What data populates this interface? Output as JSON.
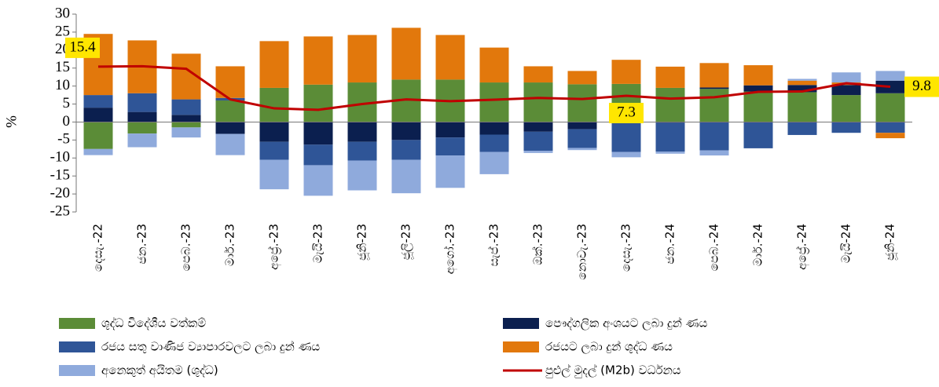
{
  "chart_data": {
    "type": "bar",
    "y_label": "%",
    "categories": [
      "දෙසැ.-22",
      "ජන.-23",
      "පෙබ.-23",
      "මාර්.-23",
      "අප්‍රේ.-23",
      "මැයි-23",
      "ජූනි-23",
      "ජූලි-23",
      "අගෝ.-23",
      "සැප්.-23",
      "ඔක්.-23",
      "නොවැ.-23",
      "දෙසැ.-23",
      "ජන.-24",
      "පෙබ.-24",
      "මාර්.-24",
      "අප්‍රේ.-24",
      "මැයි-24",
      "ජූනි-24"
    ],
    "series": [
      {
        "name": "ශුද්ධ විදේශීය වත්කම්",
        "color": "#5b8c37",
        "values": [
          -7.5,
          -3.2,
          -1.5,
          6,
          9.5,
          10.4,
          11,
          11.8,
          11.8,
          11,
          11,
          10.5,
          10.6,
          9.5,
          9.2,
          8.5,
          8.3,
          7.5,
          8
        ]
      },
      {
        "name": "පෞද්ගලික අංශයට ලබා දුන් ණය",
        "color": "#0b1f4f",
        "values": [
          4,
          2.8,
          2,
          -3.3,
          -5.5,
          -6.3,
          -5.5,
          -5,
          -4.3,
          -3.5,
          -2.7,
          -2,
          -0.3,
          -0.2,
          0.4,
          1.7,
          2,
          2.8,
          3.5
        ]
      },
      {
        "name": "රජය සතු වාණිජ ව්‍යාපාරවලට ලබා දුන් ණය",
        "color": "#2f5597",
        "values": [
          3.5,
          5.2,
          4.3,
          0.7,
          -5,
          -5.7,
          -5.2,
          -5.5,
          -5,
          -4.8,
          -5.3,
          -5.2,
          -8,
          -8,
          -7.9,
          -7.3,
          -3.6,
          -3,
          -3
        ]
      },
      {
        "name": "රජයට ලබා දුන් ශුද්ධ ණය",
        "color": "#e2780c",
        "values": [
          17,
          14.7,
          12.7,
          8.8,
          13,
          13.4,
          13.2,
          14.4,
          12.4,
          9.7,
          4.5,
          3.7,
          6.7,
          5.9,
          6.8,
          5.6,
          1.2,
          0.7,
          -1.5
        ]
      },
      {
        "name": "අනෙකුත් අයිතම (ශුද්ධ)",
        "color": "#8faadc",
        "values": [
          -1.7,
          -3.8,
          -2.8,
          -5.9,
          -8.2,
          -8.5,
          -8.3,
          -9.3,
          -9,
          -6.2,
          -0.6,
          -0.6,
          -1.5,
          -0.6,
          -1.4,
          0,
          0.5,
          2.8,
          2.7
        ]
      },
      {
        "name": "පුළුල් මුදල් (M2b) වර්ධනය",
        "color": "#c00000",
        "type": "line",
        "values": [
          15.4,
          15.5,
          14.8,
          6.3,
          3.8,
          3.4,
          5,
          6.3,
          5.8,
          6.2,
          6.7,
          6.4,
          7.3,
          6.5,
          6.9,
          8.4,
          8.5,
          10.8,
          9.8
        ]
      }
    ],
    "ylim": [
      -25,
      30
    ],
    "yticks": [
      -25,
      -20,
      -15,
      -10,
      -5,
      0,
      5,
      10,
      15,
      20,
      25,
      30
    ],
    "annotation_color": "#ffe600"
  }
}
